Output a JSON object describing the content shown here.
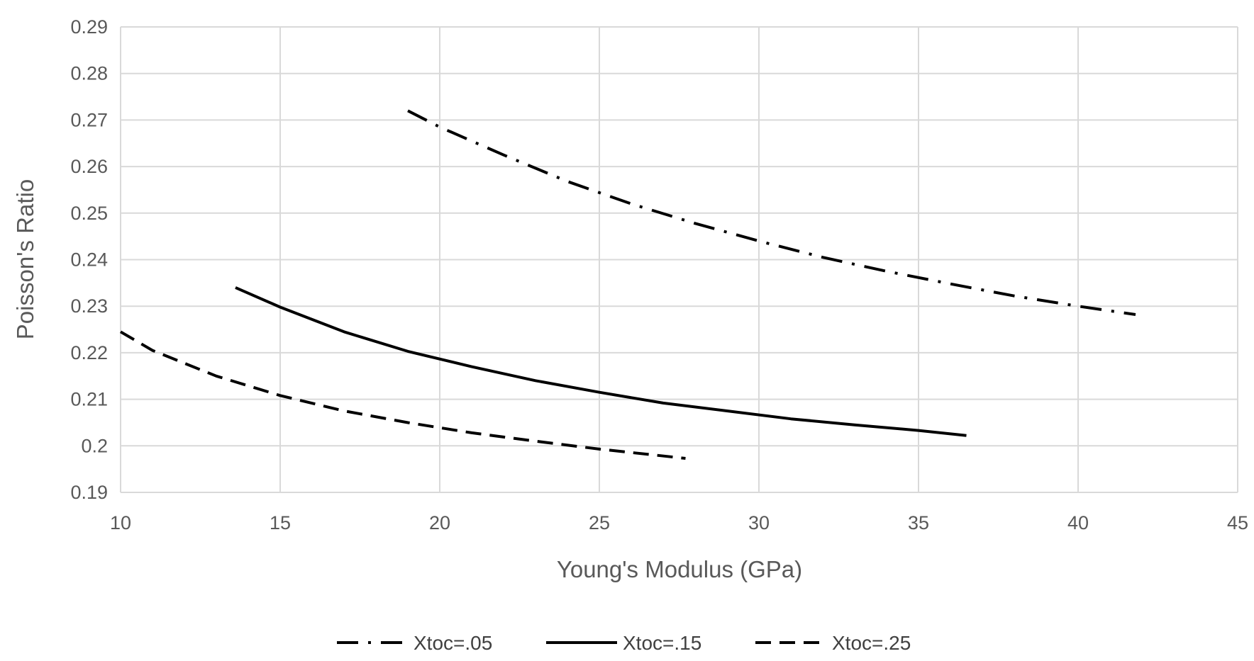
{
  "chart_data": {
    "type": "line",
    "title": "",
    "xlabel": "Young's Modulus (GPa)",
    "ylabel": "Poisson's Ratio",
    "xlim": [
      10,
      45
    ],
    "ylim": [
      0.19,
      0.29
    ],
    "x_ticks": [
      10,
      15,
      20,
      25,
      30,
      35,
      40,
      45
    ],
    "x_tick_labels": [
      "10",
      "15",
      "20",
      "25",
      "30",
      "35",
      "40",
      "45"
    ],
    "y_ticks": [
      0.19,
      0.2,
      0.21,
      0.22,
      0.23,
      0.24,
      0.25,
      0.26,
      0.27,
      0.28,
      0.29
    ],
    "y_tick_labels": [
      "0.19",
      "0.2",
      "0.21",
      "0.22",
      "0.23",
      "0.24",
      "0.25",
      "0.26",
      "0.27",
      "0.28",
      "0.29"
    ],
    "grid": true,
    "legend_position": "bottom",
    "series": [
      {
        "name": "Xtoc=.05",
        "style": "dash-dot",
        "color": "#000000",
        "x": [
          19.0,
          20.0,
          22.0,
          24.0,
          26.0,
          28.0,
          30.0,
          32.0,
          34.0,
          36.0,
          38.0,
          40.0,
          41.8
        ],
        "y": [
          0.272,
          0.2685,
          0.2625,
          0.2568,
          0.252,
          0.2478,
          0.244,
          0.2405,
          0.2375,
          0.2348,
          0.2322,
          0.23,
          0.2282
        ]
      },
      {
        "name": "Xtoc=.15",
        "style": "solid",
        "color": "#000000",
        "x": [
          13.6,
          15.0,
          17.0,
          19.0,
          21.0,
          23.0,
          25.0,
          27.0,
          29.0,
          31.0,
          33.0,
          35.0,
          36.5
        ],
        "y": [
          0.234,
          0.2298,
          0.2245,
          0.2203,
          0.217,
          0.214,
          0.2115,
          0.2092,
          0.2075,
          0.2058,
          0.2045,
          0.2033,
          0.2022
        ]
      },
      {
        "name": "Xtoc=.25",
        "style": "dashed",
        "color": "#000000",
        "x": [
          10.0,
          11.0,
          13.0,
          15.0,
          17.0,
          19.0,
          21.0,
          23.0,
          25.0,
          27.7
        ],
        "y": [
          0.2245,
          0.2205,
          0.215,
          0.2108,
          0.2075,
          0.205,
          0.2028,
          0.201,
          0.1993,
          0.1973
        ]
      }
    ]
  }
}
